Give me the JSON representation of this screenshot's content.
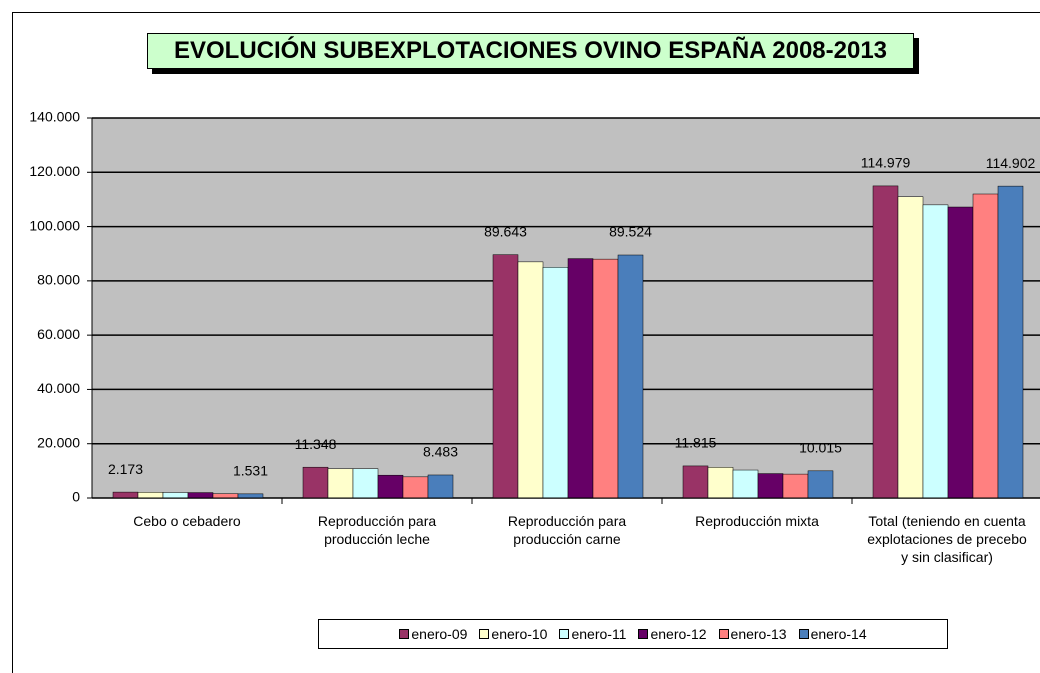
{
  "chart_data": {
    "type": "bar",
    "title": "EVOLUCIÓN SUBEXPLOTACIONES OVINO ESPAÑA 2008-2013",
    "categories": [
      "Cebo o cebadero",
      "Reproducción para producción leche",
      "Reproducción para producción carne",
      "Reproducción mixta",
      "Total (teniendo en cuenta explotaciones de precebo y sin clasificar)"
    ],
    "series": [
      {
        "name": "enero-09",
        "color": "#993366",
        "values": [
          2173,
          11348,
          89643,
          11815,
          114979
        ],
        "value_labels": [
          "2.173",
          "11.348",
          "89.643",
          "11.815",
          "114.979"
        ]
      },
      {
        "name": "enero-10",
        "color": "#ffffcc",
        "values": [
          2100,
          10800,
          87000,
          11300,
          111000
        ]
      },
      {
        "name": "enero-11",
        "color": "#ccffff",
        "values": [
          2000,
          10800,
          85000,
          10300,
          108000
        ]
      },
      {
        "name": "enero-12",
        "color": "#660066",
        "values": [
          2000,
          8400,
          88200,
          9000,
          107200
        ]
      },
      {
        "name": "enero-13",
        "color": "#ff8080",
        "values": [
          1600,
          7800,
          88000,
          8800,
          112000
        ]
      },
      {
        "name": "enero-14",
        "color": "#4a7ebb",
        "values": [
          1531,
          8483,
          89524,
          10015,
          114902
        ],
        "value_labels": [
          "1.531",
          "8.483",
          "89.524",
          "10.015",
          "114.902"
        ]
      }
    ],
    "ylim": [
      0,
      140000
    ],
    "yticks": [
      0,
      {
        "value": 20000,
        "label": "20.000"
      },
      {
        "value": 40000,
        "label": "40.000"
      },
      {
        "value": 60000,
        "label": "60.000"
      },
      {
        "value": 80000,
        "label": "80.000"
      },
      {
        "value": 100000,
        "label": "100.000"
      },
      {
        "value": 120000,
        "label": "120.000"
      },
      {
        "value": 140000,
        "label": "140.000"
      }
    ],
    "grid": true,
    "plot_background": "#c0c0c0",
    "legend": "bottom"
  }
}
